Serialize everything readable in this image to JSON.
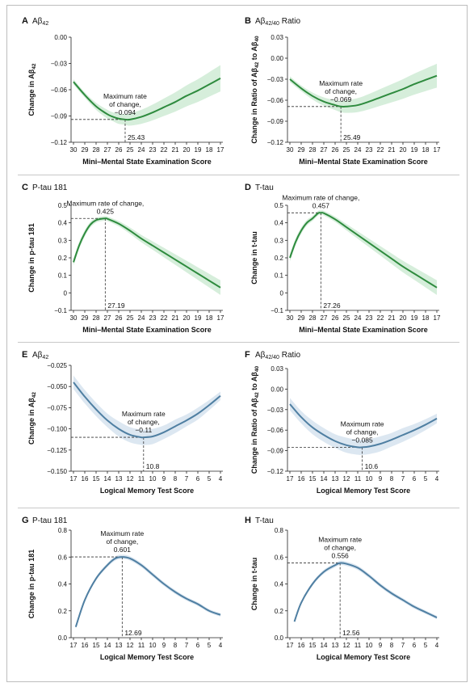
{
  "colors": {
    "green": "#2e8b3e",
    "greenBand": "#d6eedb",
    "blue": "#4f7fa2",
    "blueBand": "#dce7f1"
  },
  "chart_data": [
    {
      "type": "line",
      "letter": "A",
      "title": "Aβ42",
      "xlabel": "Mini–Mental State Examination Score",
      "ylabel": "Change in Aβ42",
      "xticks": [
        30,
        29,
        28,
        27,
        26,
        25,
        24,
        23,
        22,
        21,
        20,
        19,
        18,
        17
      ],
      "yticks": [
        "0.00",
        "−0.03",
        "−0.06",
        "−0.09",
        "−0.12"
      ],
      "ylim": [
        -0.12,
        0.0
      ],
      "series": [
        {
          "x": [
            30,
            29,
            28,
            27,
            26.5,
            26,
            25.43,
            25,
            24,
            23,
            22,
            21,
            20,
            19,
            18,
            17
          ],
          "y": [
            -0.051,
            -0.066,
            -0.079,
            -0.088,
            -0.091,
            -0.093,
            -0.094,
            -0.094,
            -0.091,
            -0.086,
            -0.08,
            -0.074,
            -0.067,
            -0.061,
            -0.054,
            -0.047
          ],
          "band": [
            0.003,
            0.003,
            0.004,
            0.005,
            0.005,
            0.006,
            0.006,
            0.007,
            0.008,
            0.009,
            0.01,
            0.011,
            0.012,
            0.013,
            0.014,
            0.015
          ]
        }
      ],
      "annotation": {
        "x": 25.43,
        "y": -0.094,
        "line1": "Maximum rate",
        "line2": "of change,",
        "value": "−0.094",
        "xlabel": "25.43"
      }
    },
    {
      "type": "line",
      "letter": "B",
      "title": "Aβ42/40 Ratio",
      "xlabel": "Mini–Mental State Examination Score",
      "ylabel": "Change in Ratio of Aβ42 to Aβ40",
      "xticks": [
        30,
        29,
        28,
        27,
        26,
        25,
        24,
        23,
        22,
        21,
        20,
        19,
        18,
        17
      ],
      "yticks": [
        "0.03",
        "0.00",
        "−0.03",
        "−0.06",
        "−0.09",
        "−0.12"
      ],
      "ylim": [
        -0.12,
        0.03
      ],
      "series": [
        {
          "x": [
            30,
            29,
            28,
            27,
            26,
            25.49,
            25,
            24,
            23,
            22,
            21,
            20,
            19,
            18,
            17
          ],
          "y": [
            -0.03,
            -0.043,
            -0.054,
            -0.062,
            -0.067,
            -0.069,
            -0.069,
            -0.067,
            -0.062,
            -0.056,
            -0.05,
            -0.044,
            -0.037,
            -0.031,
            -0.025
          ],
          "band": [
            0.004,
            0.004,
            0.005,
            0.006,
            0.007,
            0.008,
            0.009,
            0.01,
            0.011,
            0.012,
            0.013,
            0.014,
            0.015,
            0.016,
            0.017
          ]
        }
      ],
      "annotation": {
        "x": 25.49,
        "y": -0.069,
        "line1": "Maximum rate",
        "line2": "of change,",
        "value": "−0.069",
        "xlabel": "25.49"
      }
    },
    {
      "type": "line",
      "letter": "C",
      "title": "P-tau 181",
      "xlabel": "Mini–Mental State Examination Score",
      "ylabel": "Change in p-tau 181",
      "xticks": [
        30,
        29,
        28,
        27,
        26,
        25,
        24,
        23,
        22,
        21,
        20,
        19,
        18,
        17
      ],
      "yticks": [
        "0.5",
        "0.4",
        "0.3",
        "0.2",
        "0.1",
        "0",
        "−0.1"
      ],
      "ylim": [
        -0.1,
        0.5
      ],
      "series": [
        {
          "x": [
            30,
            29.5,
            29,
            28.5,
            28,
            27.5,
            27.19,
            27,
            26,
            25,
            24,
            23,
            22,
            21,
            20,
            19,
            18,
            17
          ],
          "y": [
            0.175,
            0.27,
            0.34,
            0.39,
            0.415,
            0.423,
            0.425,
            0.423,
            0.395,
            0.355,
            0.31,
            0.27,
            0.23,
            0.19,
            0.15,
            0.11,
            0.07,
            0.03
          ],
          "band": [
            0.02,
            0.02,
            0.018,
            0.016,
            0.014,
            0.013,
            0.013,
            0.013,
            0.015,
            0.018,
            0.021,
            0.024,
            0.027,
            0.03,
            0.033,
            0.036,
            0.039,
            0.042
          ]
        }
      ],
      "annotation": {
        "x": 27.19,
        "y": 0.425,
        "line1": "Maximum rate of change,",
        "line2": "",
        "value": "0.425",
        "xlabel": "27.19"
      }
    },
    {
      "type": "line",
      "letter": "D",
      "title": "T-tau",
      "xlabel": "Mini–Mental State Examination Score",
      "ylabel": "Change in t-tau",
      "xticks": [
        30,
        29,
        28,
        27,
        26,
        25,
        24,
        23,
        22,
        21,
        20,
        19,
        18,
        17
      ],
      "yticks": [
        "0.5",
        "0.4",
        "0.3",
        "0.2",
        "0.1",
        "0",
        "−0.1"
      ],
      "ylim": [
        -0.1,
        0.5
      ],
      "series": [
        {
          "x": [
            30,
            29.5,
            29,
            28.5,
            28,
            27.5,
            27.26,
            27,
            26,
            25,
            24,
            23,
            22,
            21,
            20,
            19,
            18,
            17
          ],
          "y": [
            0.2,
            0.29,
            0.355,
            0.4,
            0.425,
            0.455,
            0.457,
            0.455,
            0.42,
            0.375,
            0.33,
            0.285,
            0.24,
            0.195,
            0.15,
            0.11,
            0.07,
            0.03
          ],
          "band": [
            0.02,
            0.02,
            0.018,
            0.016,
            0.014,
            0.013,
            0.013,
            0.013,
            0.015,
            0.018,
            0.021,
            0.024,
            0.027,
            0.03,
            0.033,
            0.036,
            0.039,
            0.042
          ]
        }
      ],
      "annotation": {
        "x": 27.26,
        "y": 0.457,
        "line1": "Maximum rate of change,",
        "line2": "",
        "value": "0.457",
        "xlabel": "27.26"
      }
    },
    {
      "type": "line",
      "letter": "E",
      "title": "Aβ42",
      "xlabel": "Logical Memory Test Score",
      "ylabel": "Change in Aβ42",
      "xticks": [
        17,
        16,
        15,
        14,
        13,
        12,
        11,
        10,
        9,
        8,
        7,
        6,
        5,
        4
      ],
      "yticks": [
        "−0.025",
        "−0.050",
        "−0.075",
        "−0.100",
        "−0.125",
        "−0.150"
      ],
      "ylim": [
        -0.15,
        -0.025
      ],
      "series": [
        {
          "x": [
            17,
            16,
            15,
            14,
            13,
            12,
            11,
            10.8,
            10,
            9,
            8,
            7,
            6,
            5,
            4
          ],
          "y": [
            -0.045,
            -0.062,
            -0.077,
            -0.09,
            -0.1,
            -0.107,
            -0.11,
            -0.11,
            -0.109,
            -0.104,
            -0.097,
            -0.09,
            -0.082,
            -0.072,
            -0.061
          ],
          "band": [
            0.008,
            0.008,
            0.008,
            0.008,
            0.009,
            0.009,
            0.009,
            0.009,
            0.009,
            0.008,
            0.008,
            0.007,
            0.007,
            0.006,
            0.005
          ]
        }
      ],
      "annotation": {
        "x": 10.8,
        "y": -0.11,
        "line1": "Maximum rate",
        "line2": "of change,",
        "value": "−0.11",
        "xlabel": "10.8"
      }
    },
    {
      "type": "line",
      "letter": "F",
      "title": "Aβ42/40 Ratio",
      "xlabel": "Logical Memory Test Score",
      "ylabel": "Change in Ratio of Aβ42 to Aβ40",
      "xticks": [
        17,
        16,
        15,
        14,
        13,
        12,
        11,
        10,
        9,
        8,
        7,
        6,
        5,
        4
      ],
      "yticks": [
        "0.03",
        "0.00",
        "−0.03",
        "−0.06",
        "−0.09",
        "−0.12"
      ],
      "ylim": [
        -0.12,
        0.03
      ],
      "series": [
        {
          "x": [
            17,
            16,
            15,
            14,
            13,
            12,
            11,
            10.6,
            10,
            9,
            8,
            7,
            6,
            5,
            4
          ],
          "y": [
            -0.022,
            -0.041,
            -0.056,
            -0.067,
            -0.076,
            -0.082,
            -0.085,
            -0.085,
            -0.084,
            -0.08,
            -0.074,
            -0.067,
            -0.06,
            -0.052,
            -0.043
          ],
          "band": [
            0.009,
            0.009,
            0.01,
            0.01,
            0.01,
            0.011,
            0.011,
            0.011,
            0.011,
            0.011,
            0.01,
            0.01,
            0.009,
            0.008,
            0.007
          ]
        }
      ],
      "annotation": {
        "x": 10.6,
        "y": -0.085,
        "line1": "Maximum rate",
        "line2": "of change,",
        "value": "−0.085",
        "xlabel": "10.6"
      }
    },
    {
      "type": "line",
      "letter": "G",
      "title": "P-tau 181",
      "xlabel": "Logical Memory Test Score",
      "ylabel": "Change in p-tau 181",
      "xticks": [
        17,
        16,
        15,
        14,
        13,
        12,
        11,
        10,
        9,
        8,
        7,
        6,
        5,
        4
      ],
      "yticks": [
        "0.8",
        "0.6",
        "0.4",
        "0.2",
        "0.0"
      ],
      "ylim": [
        0,
        0.8
      ],
      "series": [
        {
          "x": [
            16.8,
            16,
            15,
            14,
            13.3,
            12.69,
            12,
            11,
            10,
            9,
            8,
            7,
            6,
            5,
            4
          ],
          "y": [
            0.08,
            0.28,
            0.44,
            0.54,
            0.59,
            0.601,
            0.59,
            0.54,
            0.47,
            0.4,
            0.34,
            0.29,
            0.25,
            0.2,
            0.17
          ],
          "band": [
            0.012,
            0.012,
            0.014,
            0.015,
            0.016,
            0.016,
            0.016,
            0.016,
            0.016,
            0.015,
            0.015,
            0.014,
            0.014,
            0.013,
            0.013
          ]
        }
      ],
      "annotation": {
        "x": 12.69,
        "y": 0.601,
        "line1": "Maximum rate",
        "line2": "of change,",
        "value": "0.601",
        "xlabel": "12.69"
      }
    },
    {
      "type": "line",
      "letter": "H",
      "title": "T-tau",
      "xlabel": "Logical Memory Test Score",
      "ylabel": "Change in t-tau",
      "xticks": [
        17,
        16,
        15,
        14,
        13,
        12,
        11,
        10,
        9,
        8,
        7,
        6,
        5,
        4
      ],
      "yticks": [
        "0.8",
        "0.6",
        "0.4",
        "0.2",
        "0.0"
      ],
      "ylim": [
        0,
        0.8
      ],
      "series": [
        {
          "x": [
            16.6,
            16,
            15,
            14,
            13,
            12.56,
            12,
            11,
            10,
            9,
            8,
            7,
            6,
            5,
            4
          ],
          "y": [
            0.12,
            0.26,
            0.4,
            0.49,
            0.54,
            0.556,
            0.55,
            0.52,
            0.46,
            0.39,
            0.33,
            0.28,
            0.23,
            0.19,
            0.15
          ],
          "band": [
            0.012,
            0.012,
            0.014,
            0.015,
            0.016,
            0.016,
            0.016,
            0.016,
            0.016,
            0.015,
            0.015,
            0.014,
            0.014,
            0.013,
            0.013
          ]
        }
      ],
      "annotation": {
        "x": 12.56,
        "y": 0.556,
        "line1": "Maximum rate",
        "line2": "of change,",
        "value": "0.556",
        "xlabel": "12.56"
      }
    }
  ]
}
